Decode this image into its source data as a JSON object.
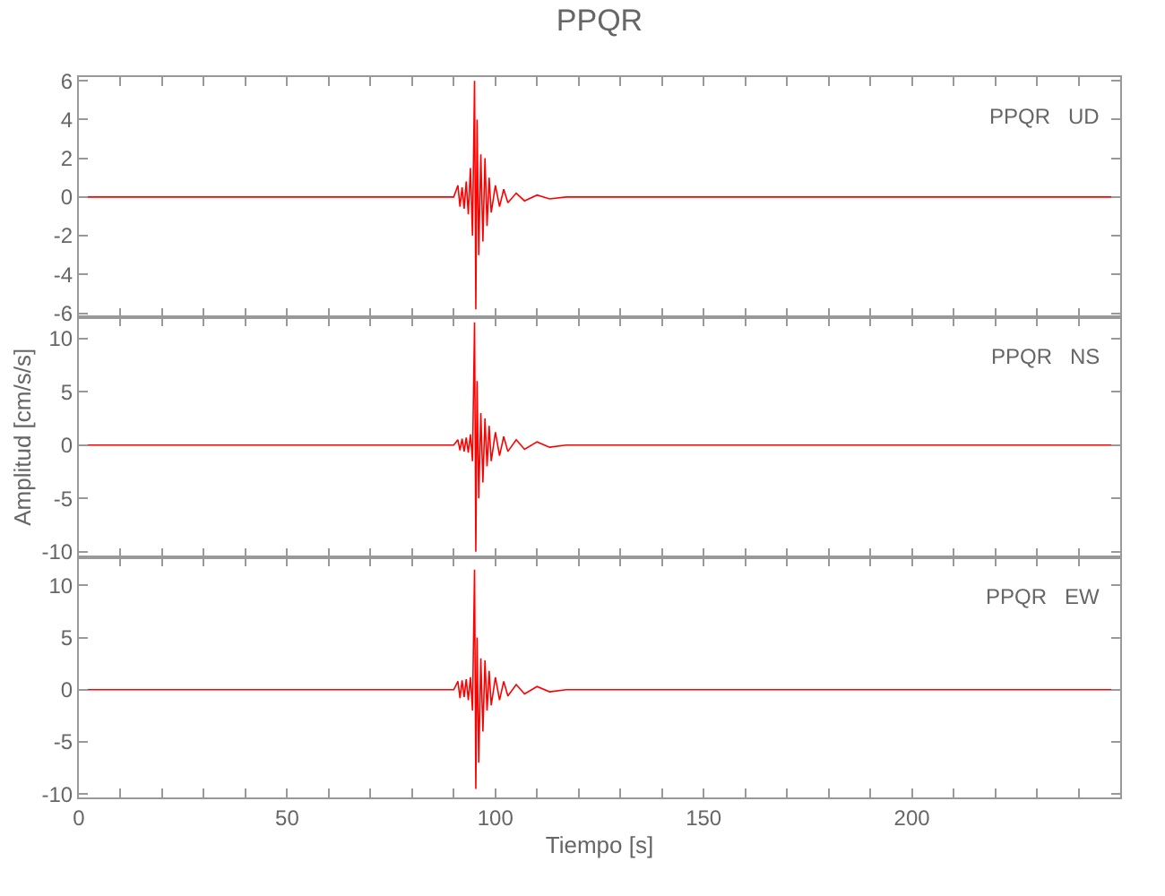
{
  "chart_data": [
    {
      "type": "line",
      "title": "PPQR",
      "annotations": [
        "PPQR   UD"
      ],
      "x": [
        0,
        10,
        20,
        30,
        40,
        50,
        60,
        70,
        80,
        90,
        91,
        91.5,
        92,
        92.5,
        93,
        93.5,
        94,
        94.5,
        95,
        95.3,
        95.6,
        96,
        96.5,
        97,
        97.5,
        98,
        98.5,
        99,
        100,
        101,
        102,
        103,
        105,
        107,
        110,
        113,
        117,
        120,
        140,
        160,
        180,
        200,
        220,
        240,
        250
      ],
      "series": [
        {
          "color": "#ff0000",
          "values": [
            0,
            0,
            0,
            0,
            0,
            0,
            0,
            0,
            0,
            0,
            0.6,
            -0.5,
            0.5,
            -0.6,
            0.8,
            -0.9,
            1.5,
            -2,
            6,
            -5.8,
            4,
            -3,
            2.2,
            -2.3,
            2,
            -1.5,
            1,
            -0.8,
            0.6,
            -0.5,
            0.4,
            -0.3,
            0.2,
            -0.2,
            0.1,
            -0.1,
            0,
            0,
            0,
            0,
            0,
            0,
            0,
            0,
            0
          ]
        }
      ],
      "xlim": [
        0,
        250
      ],
      "ylim": [
        -6.2,
        6.2
      ],
      "yticks": [
        -6,
        -4,
        -2,
        0,
        2,
        4,
        6
      ],
      "xticks": [
        0,
        {
          "value": 10,
          "label": null
        },
        {
          "value": 20,
          "label": null
        },
        {
          "value": 30,
          "label": null
        },
        {
          "value": 40,
          "label": null
        },
        50,
        {
          "value": 60,
          "label": null
        },
        {
          "value": 70,
          "label": null
        },
        {
          "value": 80,
          "label": null
        },
        {
          "value": 90,
          "label": null
        },
        100,
        {
          "value": 110,
          "label": null
        },
        {
          "value": 120,
          "label": null
        },
        {
          "value": 130,
          "label": null
        },
        {
          "value": 140,
          "label": null
        },
        150,
        {
          "value": 160,
          "label": null
        },
        {
          "value": 170,
          "label": null
        },
        {
          "value": 180,
          "label": null
        },
        {
          "value": 190,
          "label": null
        },
        200,
        {
          "value": 210,
          "label": null
        },
        {
          "value": 220,
          "label": null
        },
        {
          "value": 230,
          "label": null
        },
        {
          "value": 240,
          "label": null
        }
      ],
      "tick_labels": "y"
    },
    {
      "type": "line",
      "ylabel": "Amplitud [cm/s/s]",
      "annotations": [
        "PPQR   NS"
      ],
      "x": [
        0,
        10,
        20,
        30,
        40,
        50,
        60,
        70,
        80,
        90,
        91,
        91.5,
        92,
        92.5,
        93,
        93.5,
        94,
        94.5,
        95,
        95.3,
        95.6,
        96,
        96.5,
        97,
        97.5,
        98,
        98.5,
        99,
        100,
        101,
        102,
        103,
        105,
        107,
        110,
        113,
        117,
        120,
        140,
        160,
        180,
        200,
        220,
        240,
        250
      ],
      "series": [
        {
          "color": "#ff0000",
          "values": [
            0,
            0,
            0,
            0,
            0,
            0,
            0,
            0,
            0,
            0,
            0.5,
            -0.5,
            0.6,
            -0.6,
            0.7,
            -0.7,
            1,
            -1.5,
            11.5,
            -10,
            6,
            -5,
            3,
            -3.5,
            2.5,
            -2,
            1.8,
            -1.5,
            1.2,
            -1,
            0.8,
            -0.6,
            0.5,
            -0.4,
            0.3,
            -0.2,
            0,
            0,
            0,
            0,
            0,
            0,
            0,
            0,
            0
          ]
        }
      ],
      "xlim": [
        0,
        250
      ],
      "ylim": [
        -10.5,
        12
      ],
      "yticks": [
        -10,
        -5,
        0,
        5,
        10
      ],
      "xticks": [
        0,
        {
          "value": 10,
          "label": null
        },
        {
          "value": 20,
          "label": null
        },
        {
          "value": 30,
          "label": null
        },
        {
          "value": 40,
          "label": null
        },
        50,
        {
          "value": 60,
          "label": null
        },
        {
          "value": 70,
          "label": null
        },
        {
          "value": 80,
          "label": null
        },
        {
          "value": 90,
          "label": null
        },
        100,
        {
          "value": 110,
          "label": null
        },
        {
          "value": 120,
          "label": null
        },
        {
          "value": 130,
          "label": null
        },
        {
          "value": 140,
          "label": null
        },
        150,
        {
          "value": 160,
          "label": null
        },
        {
          "value": 170,
          "label": null
        },
        {
          "value": 180,
          "label": null
        },
        {
          "value": 190,
          "label": null
        },
        200,
        {
          "value": 210,
          "label": null
        },
        {
          "value": 220,
          "label": null
        },
        {
          "value": 230,
          "label": null
        },
        {
          "value": 240,
          "label": null
        }
      ],
      "tick_labels": "y"
    },
    {
      "type": "line",
      "xlabel": "Tiempo [s]",
      "annotations": [
        "PPQR   EW"
      ],
      "x": [
        0,
        10,
        20,
        30,
        40,
        50,
        60,
        70,
        80,
        90,
        91,
        91.5,
        92,
        92.5,
        93,
        93.5,
        94,
        94.5,
        95,
        95.3,
        95.6,
        96,
        96.5,
        97,
        97.5,
        98,
        98.5,
        99,
        100,
        101,
        102,
        103,
        105,
        107,
        110,
        113,
        117,
        120,
        140,
        160,
        180,
        200,
        220,
        240,
        250
      ],
      "series": [
        {
          "color": "#ff0000",
          "values": [
            0,
            0,
            0,
            0,
            0,
            0,
            0,
            0,
            0,
            0,
            0.8,
            -0.8,
            0.9,
            -0.7,
            1,
            -1,
            1.2,
            -2,
            11.5,
            -9.5,
            5,
            -7,
            3,
            -4,
            2.8,
            -2,
            1.8,
            -1.5,
            1.2,
            -1,
            0.8,
            -0.6,
            0.5,
            -0.4,
            0.3,
            -0.2,
            0,
            0,
            0,
            0,
            0,
            0,
            0,
            0,
            0
          ]
        }
      ],
      "xlim": [
        0,
        250
      ],
      "ylim": [
        -10.3,
        12.7
      ],
      "yticks": [
        -10,
        -5,
        0,
        5,
        10
      ],
      "xticks": [
        0,
        {
          "value": 10,
          "label": null
        },
        {
          "value": 20,
          "label": null
        },
        {
          "value": 30,
          "label": null
        },
        {
          "value": 40,
          "label": null
        },
        50,
        {
          "value": 60,
          "label": null
        },
        {
          "value": 70,
          "label": null
        },
        {
          "value": 80,
          "label": null
        },
        {
          "value": 90,
          "label": null
        },
        100,
        {
          "value": 110,
          "label": null
        },
        {
          "value": 120,
          "label": null
        },
        {
          "value": 130,
          "label": null
        },
        {
          "value": 140,
          "label": null
        },
        150,
        {
          "value": 160,
          "label": null
        },
        {
          "value": 170,
          "label": null
        },
        {
          "value": 180,
          "label": null
        },
        {
          "value": 190,
          "label": null
        },
        200,
        {
          "value": 210,
          "label": null
        },
        {
          "value": 220,
          "label": null
        },
        {
          "value": 230,
          "label": null
        },
        {
          "value": 240,
          "label": null
        }
      ],
      "tick_labels": true
    }
  ]
}
